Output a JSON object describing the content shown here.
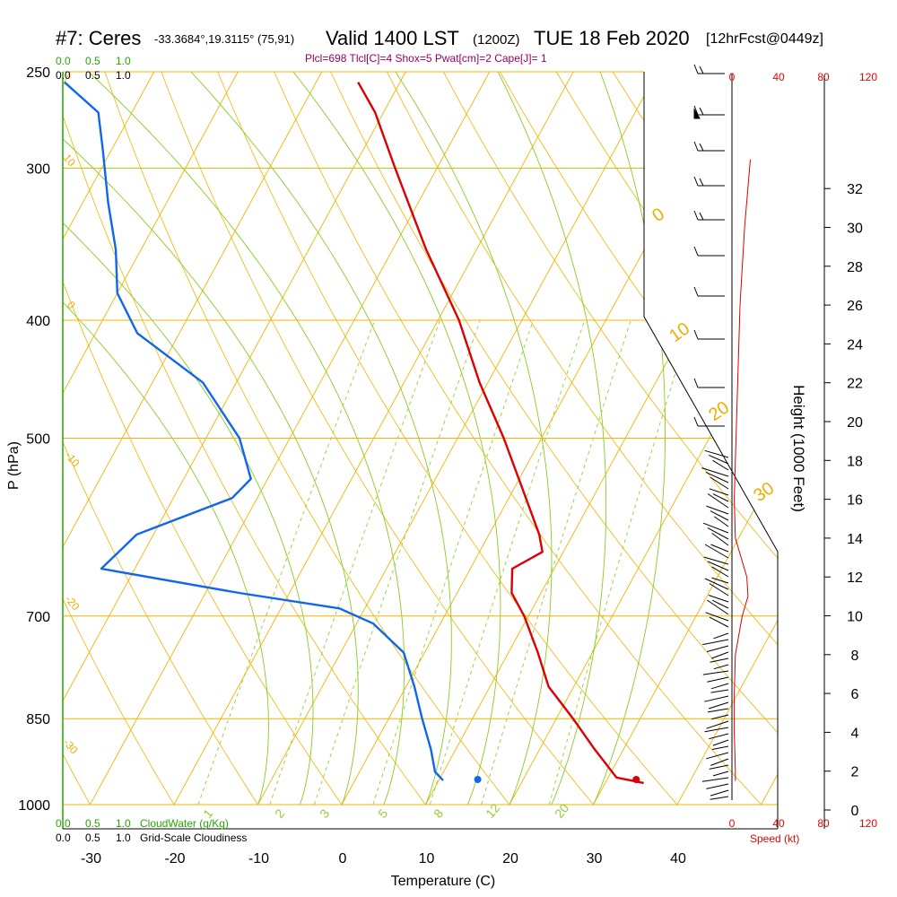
{
  "header": {
    "station_id": "#7: Ceres",
    "coords": "-33.3684°,19.3115° (75,91)",
    "valid": "Valid 1400 LST",
    "utc": "(1200Z)",
    "date": "TUE 18 Feb 2020",
    "forecast": "[12hrFcst@0449z]",
    "indices": "Plcl=698 Tlcl[C]=4 Shox=5 Pwat[cm]=2 Cape[J]= 1"
  },
  "labels": {
    "p_axis": "P (hPa)",
    "t_axis": "Temperature (C)",
    "height_axis": "Height (1000 Feet)",
    "cloud_water": "CloudWater (g/Kg)",
    "cloudiness": "Grid-Scale Cloudiness",
    "speed": "Speed (kt)"
  },
  "scales": {
    "cloud_scale": [
      "0.0",
      "0.5",
      "1.0"
    ],
    "speed_ticks": [
      "0",
      "40",
      "80",
      "120"
    ]
  },
  "colors": {
    "isobar_isotherm": "#f0b400",
    "dry_adiabat": "#f0b400",
    "moist_adiabat": "#88cc22",
    "mixing_ratio": "#99cc33",
    "temperature": "#dd0000",
    "dewpoint": "#1166ee",
    "wind_speed": "#dd0000",
    "cloud_water": "#22aa00"
  },
  "chart_data": {
    "type": "skew-t",
    "xlabel": "Temperature (C)",
    "ylabel": "P (hPa)",
    "right_ylabel": "Height (1000 Feet)",
    "pressure_ticks": [
      250,
      300,
      400,
      500,
      700,
      850,
      1000
    ],
    "temperature_ticks": [
      -30,
      -20,
      -10,
      0,
      10,
      20,
      30,
      40
    ],
    "height_ticks_kft": [
      0,
      2,
      4,
      6,
      8,
      10,
      12,
      14,
      16,
      18,
      20,
      22,
      24,
      26,
      28,
      30,
      32
    ],
    "ylim_hpa": [
      1000,
      250
    ],
    "xlim_c": [
      -30,
      45
    ],
    "isotherm_label_values": [
      0,
      10,
      20,
      30
    ],
    "dry_adiabat_label_values": [
      10,
      0,
      -10,
      -20,
      -30
    ],
    "mixing_ratio_labels": [
      "1",
      "2",
      "3",
      "5",
      "8",
      "12",
      "20"
    ],
    "temperature_profile": [
      {
        "p": 960,
        "t": 34.6
      },
      {
        "p": 950,
        "t": 31.0
      },
      {
        "p": 900,
        "t": 26.5
      },
      {
        "p": 850,
        "t": 22.0
      },
      {
        "p": 800,
        "t": 17.0
      },
      {
        "p": 750,
        "t": 13.5
      },
      {
        "p": 700,
        "t": 9.5
      },
      {
        "p": 670,
        "t": 6.5
      },
      {
        "p": 640,
        "t": 5.0
      },
      {
        "p": 620,
        "t": 7.5
      },
      {
        "p": 600,
        "t": 6.0
      },
      {
        "p": 550,
        "t": 1.0
      },
      {
        "p": 500,
        "t": -4.5
      },
      {
        "p": 450,
        "t": -11.0
      },
      {
        "p": 400,
        "t": -17.5
      },
      {
        "p": 350,
        "t": -26.0
      },
      {
        "p": 300,
        "t": -35.0
      },
      {
        "p": 270,
        "t": -41.0
      },
      {
        "p": 255,
        "t": -45.0
      }
    ],
    "dewpoint_profile": [
      {
        "p": 955,
        "t": 10.5
      },
      {
        "p": 940,
        "t": 9.0
      },
      {
        "p": 900,
        "t": 7.0
      },
      {
        "p": 850,
        "t": 4.0
      },
      {
        "p": 800,
        "t": 1.0
      },
      {
        "p": 750,
        "t": -2.5
      },
      {
        "p": 710,
        "t": -8.0
      },
      {
        "p": 690,
        "t": -13.0
      },
      {
        "p": 670,
        "t": -26.0
      },
      {
        "p": 640,
        "t": -44.0
      },
      {
        "p": 600,
        "t": -42.0
      },
      {
        "p": 560,
        "t": -33.0
      },
      {
        "p": 540,
        "t": -32.0
      },
      {
        "p": 500,
        "t": -36.0
      },
      {
        "p": 450,
        "t": -44.0
      },
      {
        "p": 410,
        "t": -55.0
      },
      {
        "p": 380,
        "t": -60.0
      },
      {
        "p": 350,
        "t": -63.0
      },
      {
        "p": 320,
        "t": -67.0
      },
      {
        "p": 290,
        "t": -71.0
      },
      {
        "p": 270,
        "t": -74.0
      },
      {
        "p": 255,
        "t": -80.0
      }
    ],
    "surface_temperature_c": 35,
    "surface_dewpoint_c": 16,
    "wind_speed_profile_kt": [
      {
        "kft": 1.5,
        "kt": 3
      },
      {
        "kft": 2,
        "kt": 3
      },
      {
        "kft": 4,
        "kt": 2
      },
      {
        "kft": 6,
        "kt": 2
      },
      {
        "kft": 8,
        "kt": 3
      },
      {
        "kft": 10,
        "kt": 9
      },
      {
        "kft": 11,
        "kt": 14
      },
      {
        "kft": 12,
        "kt": 13
      },
      {
        "kft": 13,
        "kt": 8
      },
      {
        "kft": 14,
        "kt": 3
      },
      {
        "kft": 16,
        "kt": 2
      },
      {
        "kft": 18,
        "kt": 3
      },
      {
        "kft": 22,
        "kt": 5
      },
      {
        "kft": 26,
        "kt": 7
      },
      {
        "kft": 30,
        "kt": 11
      },
      {
        "kft": 33.5,
        "kt": 16
      }
    ]
  }
}
